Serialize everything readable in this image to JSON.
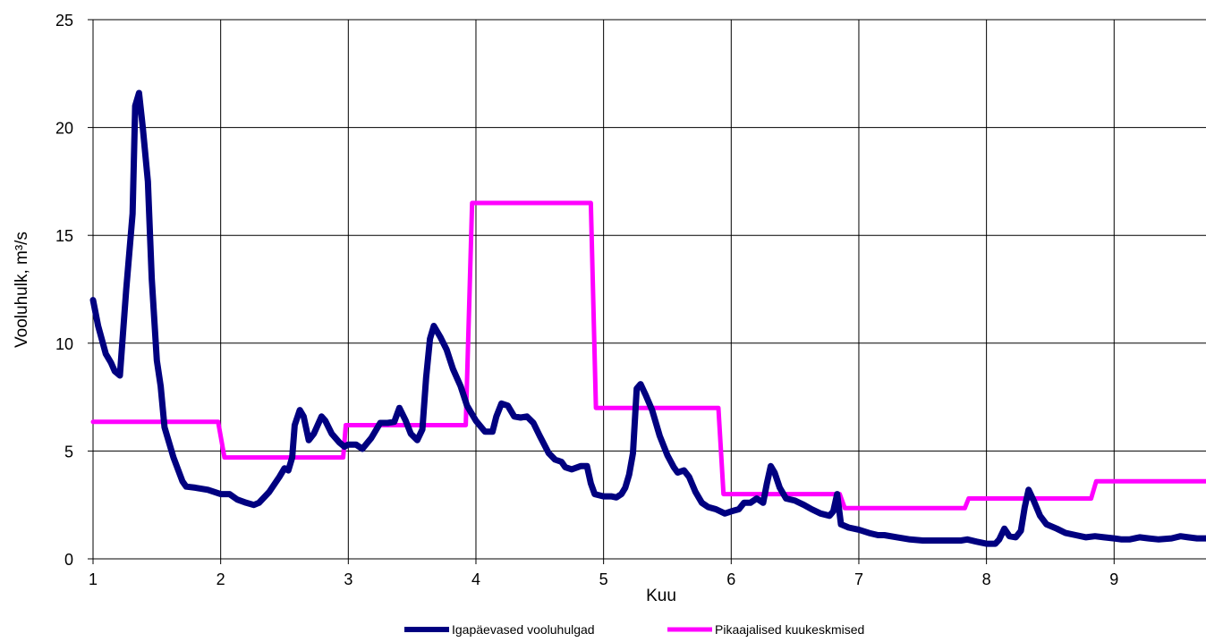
{
  "chart_data": {
    "type": "line",
    "title": "",
    "xlabel": "Kuu",
    "ylabel": "Vooluhulk, m³/s",
    "xlim": [
      1,
      9.72
    ],
    "ylim": [
      0,
      25
    ],
    "x_ticks": [
      1,
      2,
      3,
      4,
      5,
      6,
      7,
      8,
      9
    ],
    "x_tick_labels": [
      "1",
      "2",
      "3",
      "4",
      "5",
      "6",
      "7",
      "8",
      "9"
    ],
    "y_ticks": [
      0,
      5,
      10,
      15,
      20,
      25
    ],
    "y_tick_labels": [
      "0",
      "5",
      "10",
      "15",
      "20",
      "25"
    ],
    "grid": true,
    "legend_position": "bottom",
    "series": [
      {
        "name": "Igapäevased vooluhulgad",
        "color": "#000080",
        "points": [
          [
            1.0,
            12.0
          ],
          [
            1.04,
            10.8
          ],
          [
            1.1,
            9.5
          ],
          [
            1.14,
            9.1
          ],
          [
            1.17,
            8.7
          ],
          [
            1.21,
            8.5
          ],
          [
            1.26,
            12.5
          ],
          [
            1.31,
            16.0
          ],
          [
            1.33,
            21.0
          ],
          [
            1.36,
            21.6
          ],
          [
            1.39,
            20.0
          ],
          [
            1.43,
            17.5
          ],
          [
            1.46,
            13.0
          ],
          [
            1.5,
            9.2
          ],
          [
            1.53,
            8.0
          ],
          [
            1.56,
            6.1
          ],
          [
            1.63,
            4.7
          ],
          [
            1.7,
            3.6
          ],
          [
            1.73,
            3.35
          ],
          [
            1.8,
            3.3
          ],
          [
            1.9,
            3.2
          ],
          [
            2.0,
            3.0
          ],
          [
            2.07,
            3.0
          ],
          [
            2.13,
            2.75
          ],
          [
            2.2,
            2.6
          ],
          [
            2.26,
            2.5
          ],
          [
            2.3,
            2.6
          ],
          [
            2.38,
            3.1
          ],
          [
            2.46,
            3.8
          ],
          [
            2.5,
            4.2
          ],
          [
            2.53,
            4.1
          ],
          [
            2.56,
            4.7
          ],
          [
            2.58,
            6.2
          ],
          [
            2.62,
            6.9
          ],
          [
            2.65,
            6.6
          ],
          [
            2.69,
            5.5
          ],
          [
            2.73,
            5.8
          ],
          [
            2.79,
            6.6
          ],
          [
            2.82,
            6.4
          ],
          [
            2.87,
            5.8
          ],
          [
            2.93,
            5.4
          ],
          [
            2.97,
            5.2
          ],
          [
            3.0,
            5.3
          ],
          [
            3.06,
            5.3
          ],
          [
            3.11,
            5.1
          ],
          [
            3.18,
            5.6
          ],
          [
            3.25,
            6.3
          ],
          [
            3.31,
            6.3
          ],
          [
            3.36,
            6.35
          ],
          [
            3.4,
            7.0
          ],
          [
            3.45,
            6.4
          ],
          [
            3.49,
            5.8
          ],
          [
            3.54,
            5.5
          ],
          [
            3.58,
            6.0
          ],
          [
            3.61,
            8.4
          ],
          [
            3.64,
            10.2
          ],
          [
            3.67,
            10.8
          ],
          [
            3.72,
            10.3
          ],
          [
            3.77,
            9.7
          ],
          [
            3.82,
            8.8
          ],
          [
            3.88,
            8.0
          ],
          [
            3.93,
            7.1
          ],
          [
            4.0,
            6.4
          ],
          [
            4.07,
            5.9
          ],
          [
            4.13,
            5.9
          ],
          [
            4.16,
            6.6
          ],
          [
            4.2,
            7.2
          ],
          [
            4.25,
            7.1
          ],
          [
            4.3,
            6.6
          ],
          [
            4.35,
            6.55
          ],
          [
            4.4,
            6.6
          ],
          [
            4.45,
            6.3
          ],
          [
            4.5,
            5.7
          ],
          [
            4.57,
            4.9
          ],
          [
            4.62,
            4.6
          ],
          [
            4.67,
            4.5
          ],
          [
            4.7,
            4.25
          ],
          [
            4.75,
            4.15
          ],
          [
            4.82,
            4.3
          ],
          [
            4.87,
            4.3
          ],
          [
            4.9,
            3.5
          ],
          [
            4.93,
            3.0
          ],
          [
            5.0,
            2.9
          ],
          [
            5.06,
            2.9
          ],
          [
            5.1,
            2.85
          ],
          [
            5.14,
            3.0
          ],
          [
            5.17,
            3.3
          ],
          [
            5.2,
            3.9
          ],
          [
            5.23,
            4.9
          ],
          [
            5.26,
            7.9
          ],
          [
            5.29,
            8.1
          ],
          [
            5.33,
            7.6
          ],
          [
            5.38,
            6.9
          ],
          [
            5.44,
            5.7
          ],
          [
            5.5,
            4.8
          ],
          [
            5.55,
            4.25
          ],
          [
            5.58,
            4.0
          ],
          [
            5.63,
            4.1
          ],
          [
            5.67,
            3.8
          ],
          [
            5.72,
            3.1
          ],
          [
            5.77,
            2.6
          ],
          [
            5.82,
            2.4
          ],
          [
            5.88,
            2.3
          ],
          [
            5.95,
            2.1
          ],
          [
            6.0,
            2.2
          ],
          [
            6.06,
            2.3
          ],
          [
            6.1,
            2.6
          ],
          [
            6.15,
            2.6
          ],
          [
            6.2,
            2.8
          ],
          [
            6.25,
            2.6
          ],
          [
            6.28,
            3.5
          ],
          [
            6.31,
            4.3
          ],
          [
            6.34,
            4.0
          ],
          [
            6.38,
            3.3
          ],
          [
            6.43,
            2.8
          ],
          [
            6.5,
            2.7
          ],
          [
            6.57,
            2.5
          ],
          [
            6.63,
            2.3
          ],
          [
            6.7,
            2.1
          ],
          [
            6.77,
            2.0
          ],
          [
            6.8,
            2.2
          ],
          [
            6.83,
            3.0
          ],
          [
            6.86,
            1.6
          ],
          [
            6.92,
            1.45
          ],
          [
            7.0,
            1.35
          ],
          [
            7.08,
            1.2
          ],
          [
            7.15,
            1.1
          ],
          [
            7.2,
            1.1
          ],
          [
            7.3,
            1.0
          ],
          [
            7.4,
            0.9
          ],
          [
            7.5,
            0.85
          ],
          [
            7.6,
            0.85
          ],
          [
            7.7,
            0.85
          ],
          [
            7.8,
            0.85
          ],
          [
            7.85,
            0.9
          ],
          [
            7.92,
            0.8
          ],
          [
            8.0,
            0.7
          ],
          [
            8.07,
            0.7
          ],
          [
            8.1,
            0.9
          ],
          [
            8.14,
            1.4
          ],
          [
            8.18,
            1.05
          ],
          [
            8.23,
            1.0
          ],
          [
            8.27,
            1.3
          ],
          [
            8.3,
            2.4
          ],
          [
            8.33,
            3.2
          ],
          [
            8.37,
            2.7
          ],
          [
            8.42,
            2.0
          ],
          [
            8.47,
            1.6
          ],
          [
            8.55,
            1.4
          ],
          [
            8.62,
            1.2
          ],
          [
            8.7,
            1.1
          ],
          [
            8.78,
            1.0
          ],
          [
            8.85,
            1.05
          ],
          [
            8.92,
            1.0
          ],
          [
            9.0,
            0.95
          ],
          [
            9.06,
            0.9
          ],
          [
            9.12,
            0.9
          ],
          [
            9.2,
            1.0
          ],
          [
            9.27,
            0.95
          ],
          [
            9.35,
            0.9
          ],
          [
            9.45,
            0.95
          ],
          [
            9.52,
            1.05
          ],
          [
            9.58,
            1.0
          ],
          [
            9.65,
            0.95
          ],
          [
            9.72,
            0.95
          ]
        ]
      },
      {
        "name": "Pikaajalised kuukeskmised",
        "color": "#FF00FF",
        "points": [
          [
            1.0,
            6.35
          ],
          [
            1.98,
            6.35
          ],
          [
            2.03,
            4.7
          ],
          [
            2.96,
            4.7
          ],
          [
            2.98,
            6.2
          ],
          [
            3.92,
            6.2
          ],
          [
            3.97,
            16.5
          ],
          [
            4.9,
            16.5
          ],
          [
            4.94,
            7.0
          ],
          [
            5.9,
            7.0
          ],
          [
            5.94,
            3.0
          ],
          [
            6.85,
            3.0
          ],
          [
            6.89,
            2.35
          ],
          [
            7.83,
            2.35
          ],
          [
            7.86,
            2.8
          ],
          [
            8.82,
            2.8
          ],
          [
            8.86,
            3.6
          ],
          [
            9.72,
            3.6
          ]
        ]
      }
    ]
  }
}
